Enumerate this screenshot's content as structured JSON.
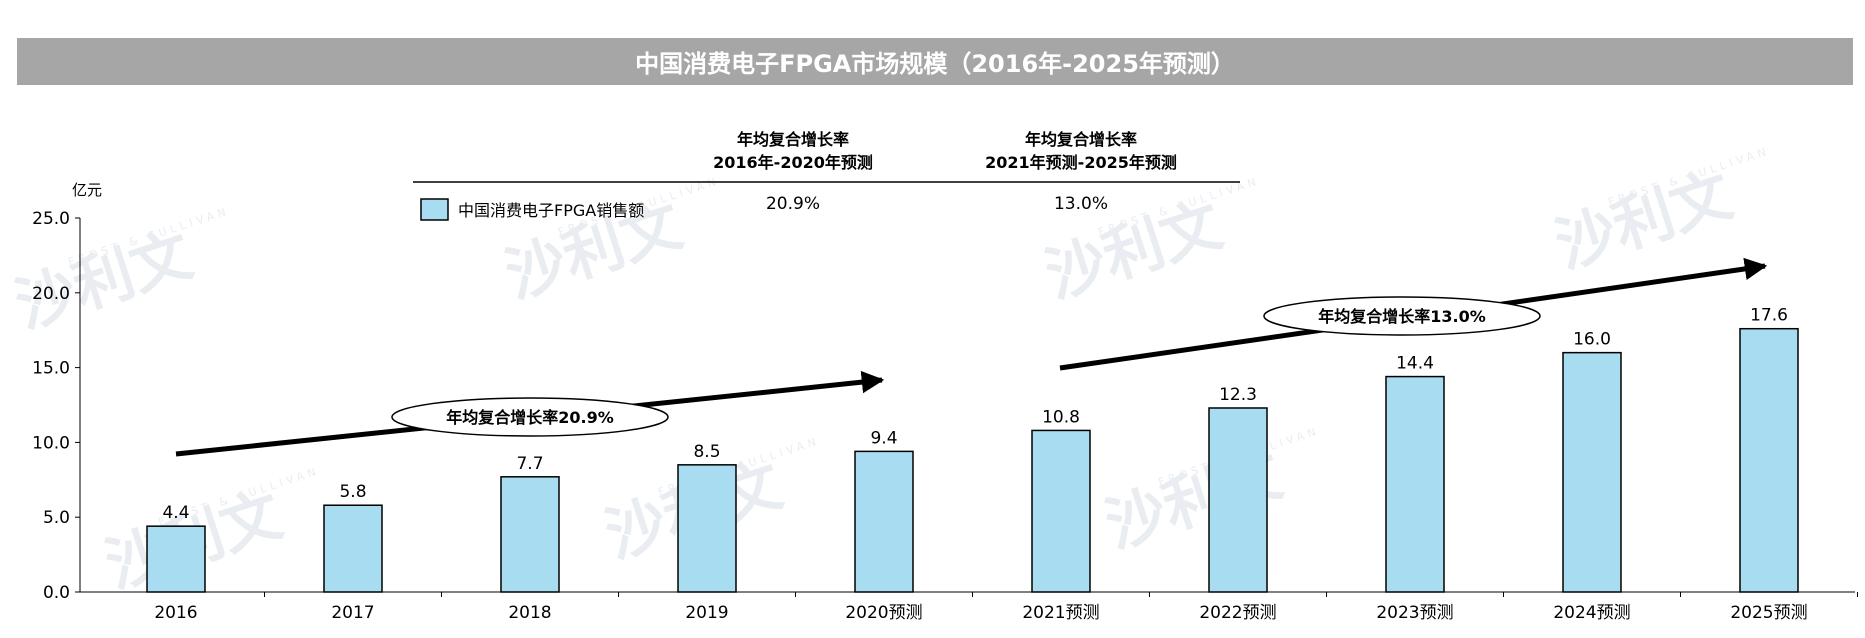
{
  "title": "中国消费电子FPGA市场规模（2016年-2025年预测）",
  "unit_label": "亿元",
  "watermark": "沙利文",
  "watermark_en": "FROST & SULLIVAN",
  "cagr_table": {
    "columns": [
      {
        "header_line1": "年均复合增长率",
        "header_line2": "2016年-2020年预测",
        "value": "20.9%"
      },
      {
        "header_line1": "年均复合增长率",
        "header_line2": "2021年预测-2025年预测",
        "value": "13.0%"
      }
    ]
  },
  "annotations": {
    "cagr1": "年均复合增长率20.9%",
    "cagr2": "年均复合增长率13.0%"
  },
  "colors": {
    "bar": "#a8dcf0",
    "bar_stroke": "#000000",
    "title_bg": "#a6a6a6"
  },
  "chart_data": {
    "type": "bar",
    "title": "中国消费电子FPGA市场规模（2016年-2025年预测）",
    "ylabel": "亿元",
    "xlabel": "",
    "categories": [
      "2016",
      "2017",
      "2018",
      "2019",
      "2020预测",
      "2021预测",
      "2022预测",
      "2023预测",
      "2024预测",
      "2025预测"
    ],
    "series": [
      {
        "name": "中国消费电子FPGA销售额",
        "values": [
          4.4,
          5.8,
          7.7,
          8.5,
          9.4,
          10.8,
          12.3,
          14.4,
          16.0,
          17.6
        ]
      }
    ],
    "data_labels": [
      "4.4",
      "5.8",
      "7.7",
      "8.5",
      "9.4",
      "10.8",
      "12.3",
      "14.4",
      "16.0",
      "17.6"
    ],
    "ylim": [
      0,
      25
    ],
    "yticks": [
      "0.0",
      "5.0",
      "10.0",
      "15.0",
      "20.0",
      "25.0"
    ],
    "grid": false,
    "legend_position": "top-left"
  }
}
